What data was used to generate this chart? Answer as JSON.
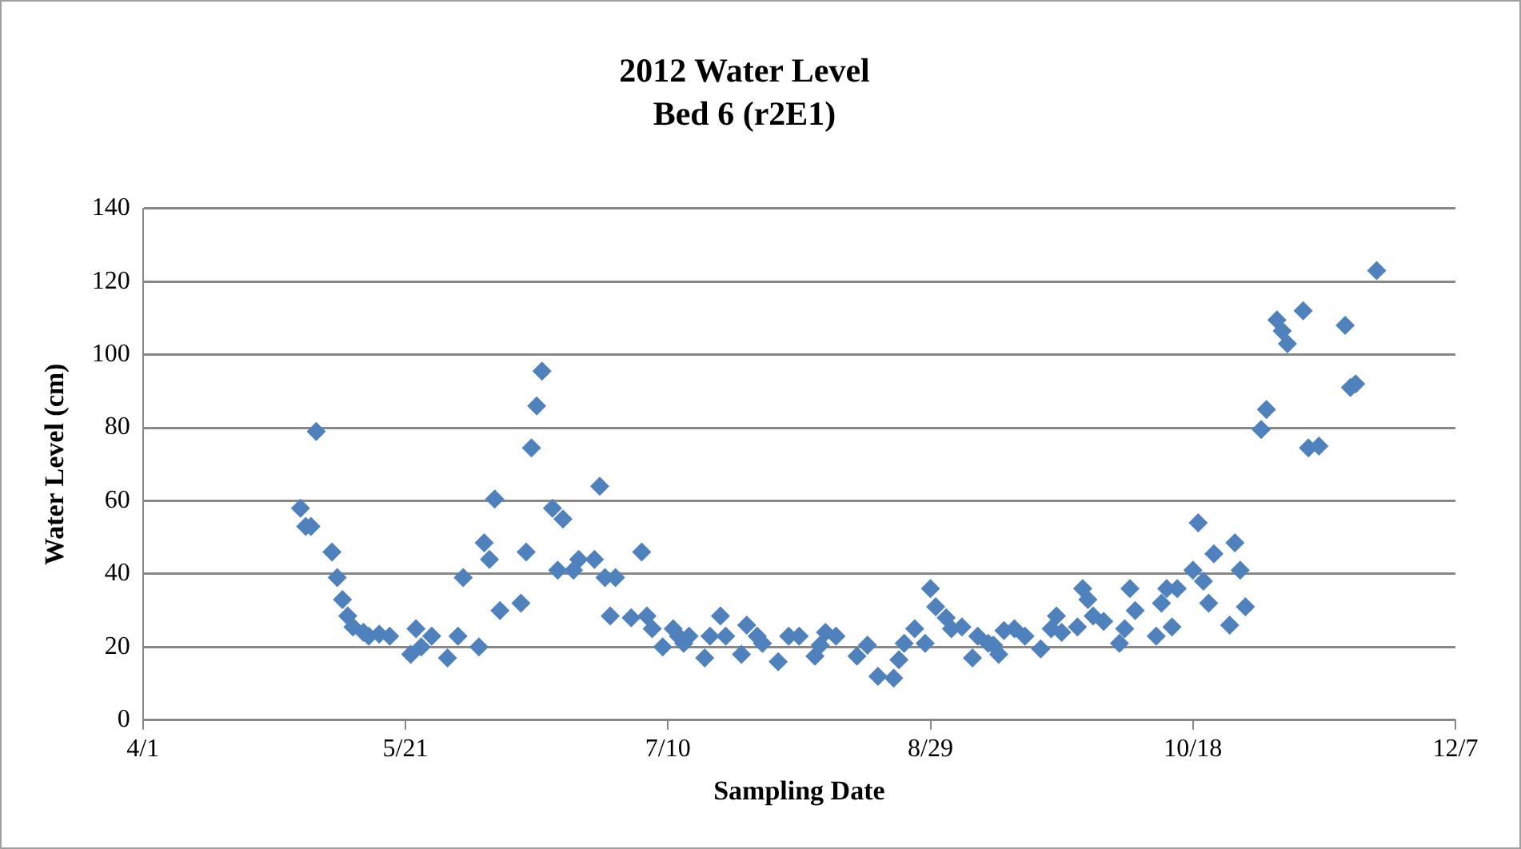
{
  "chart_data": {
    "type": "scatter",
    "title": "2012 Water Level",
    "subtitle": "Bed 6 (r2E1)",
    "xlabel": "Sampling Date",
    "ylabel": "Water Level (cm)",
    "x": [
      "2012-05-01",
      "2012-05-02",
      "2012-05-03",
      "2012-05-04",
      "2012-05-07",
      "2012-05-08",
      "2012-05-09",
      "2012-05-10",
      "2012-05-11",
      "2012-05-13",
      "2012-05-14",
      "2012-05-16",
      "2012-05-18",
      "2012-05-22",
      "2012-05-23",
      "2012-05-24",
      "2012-05-26",
      "2012-05-29",
      "2012-05-31",
      "2012-06-01",
      "2012-06-04",
      "2012-06-05",
      "2012-06-06",
      "2012-06-07",
      "2012-06-08",
      "2012-06-12",
      "2012-06-13",
      "2012-06-14",
      "2012-06-15",
      "2012-06-16",
      "2012-06-18",
      "2012-06-19",
      "2012-06-20",
      "2012-06-22",
      "2012-06-23",
      "2012-06-26",
      "2012-06-27",
      "2012-06-28",
      "2012-06-29",
      "2012-06-30",
      "2012-07-03",
      "2012-07-05",
      "2012-07-06",
      "2012-07-07",
      "2012-07-09",
      "2012-07-11",
      "2012-07-12",
      "2012-07-13",
      "2012-07-14",
      "2012-07-17",
      "2012-07-18",
      "2012-07-20",
      "2012-07-21",
      "2012-07-24",
      "2012-07-25",
      "2012-07-27",
      "2012-07-28",
      "2012-07-31",
      "2012-08-02",
      "2012-08-04",
      "2012-08-07",
      "2012-08-08",
      "2012-08-09",
      "2012-08-11",
      "2012-08-15",
      "2012-08-17",
      "2012-08-19",
      "2012-08-22",
      "2012-08-23",
      "2012-08-24",
      "2012-08-26",
      "2012-08-28",
      "2012-08-29",
      "2012-08-30",
      "2012-09-01",
      "2012-09-02",
      "2012-09-04",
      "2012-09-06",
      "2012-09-07",
      "2012-09-09",
      "2012-09-10",
      "2012-09-11",
      "2012-09-12",
      "2012-09-14",
      "2012-09-16",
      "2012-09-19",
      "2012-09-21",
      "2012-09-22",
      "2012-09-23",
      "2012-09-26",
      "2012-09-27",
      "2012-09-28",
      "2012-09-29",
      "2012-10-01",
      "2012-10-04",
      "2012-10-05",
      "2012-10-06",
      "2012-10-07",
      "2012-10-11",
      "2012-10-12",
      "2012-10-13",
      "2012-10-14",
      "2012-10-15",
      "2012-10-18",
      "2012-10-19",
      "2012-10-20",
      "2012-10-21",
      "2012-10-22",
      "2012-10-25",
      "2012-10-26",
      "2012-10-27",
      "2012-10-28",
      "2012-10-31",
      "2012-11-01",
      "2012-11-03",
      "2012-11-04",
      "2012-11-05",
      "2012-11-08",
      "2012-11-09",
      "2012-11-11",
      "2012-11-16",
      "2012-11-17",
      "2012-11-18",
      "2012-11-22"
    ],
    "values": [
      58,
      53,
      53,
      79,
      46,
      39,
      33,
      28.5,
      25.5,
      24,
      23,
      23.5,
      23,
      18,
      25,
      20,
      23,
      17,
      23,
      39,
      20,
      48.5,
      44,
      60.5,
      30,
      32,
      46,
      74.5,
      86,
      95.5,
      58,
      41,
      55,
      41,
      44,
      44,
      64,
      39,
      28.5,
      39,
      28,
      46,
      28.5,
      25,
      20,
      25,
      23,
      21,
      23,
      17,
      23,
      28.5,
      23,
      18,
      26,
      23,
      21,
      16,
      23,
      23,
      17.5,
      20.5,
      24,
      23,
      17.5,
      20.5,
      12,
      11.5,
      16.5,
      21,
      25,
      21,
      36,
      31,
      28,
      25,
      25.5,
      17,
      23,
      21,
      20.5,
      18,
      24.5,
      25,
      23,
      19.5,
      25,
      28.5,
      24,
      25.5,
      36,
      33,
      28.5,
      27,
      21,
      25,
      36,
      30,
      23,
      32,
      36,
      25.5,
      36,
      41,
      54,
      38,
      32,
      45.5,
      26,
      48.5,
      41,
      31,
      79.5,
      85,
      109.5,
      106.5,
      103,
      112,
      74.5,
      75,
      108,
      91,
      92,
      123
    ],
    "color": "#4f81bd",
    "marker": "diamond",
    "xlim": [
      "2012-04-01",
      "2012-12-07"
    ],
    "xticks": [
      {
        "value": "2012-04-01",
        "label": "4/1"
      },
      {
        "value": "2012-05-21",
        "label": "5/21"
      },
      {
        "value": "2012-07-10",
        "label": "7/10"
      },
      {
        "value": "2012-08-29",
        "label": "8/29"
      },
      {
        "value": "2012-10-18",
        "label": "10/18"
      },
      {
        "value": "2012-12-07",
        "label": "12/7"
      }
    ],
    "ylim": [
      0,
      140
    ],
    "yticks": [
      0,
      20,
      40,
      60,
      80,
      100,
      120,
      140
    ],
    "grid": "y"
  }
}
